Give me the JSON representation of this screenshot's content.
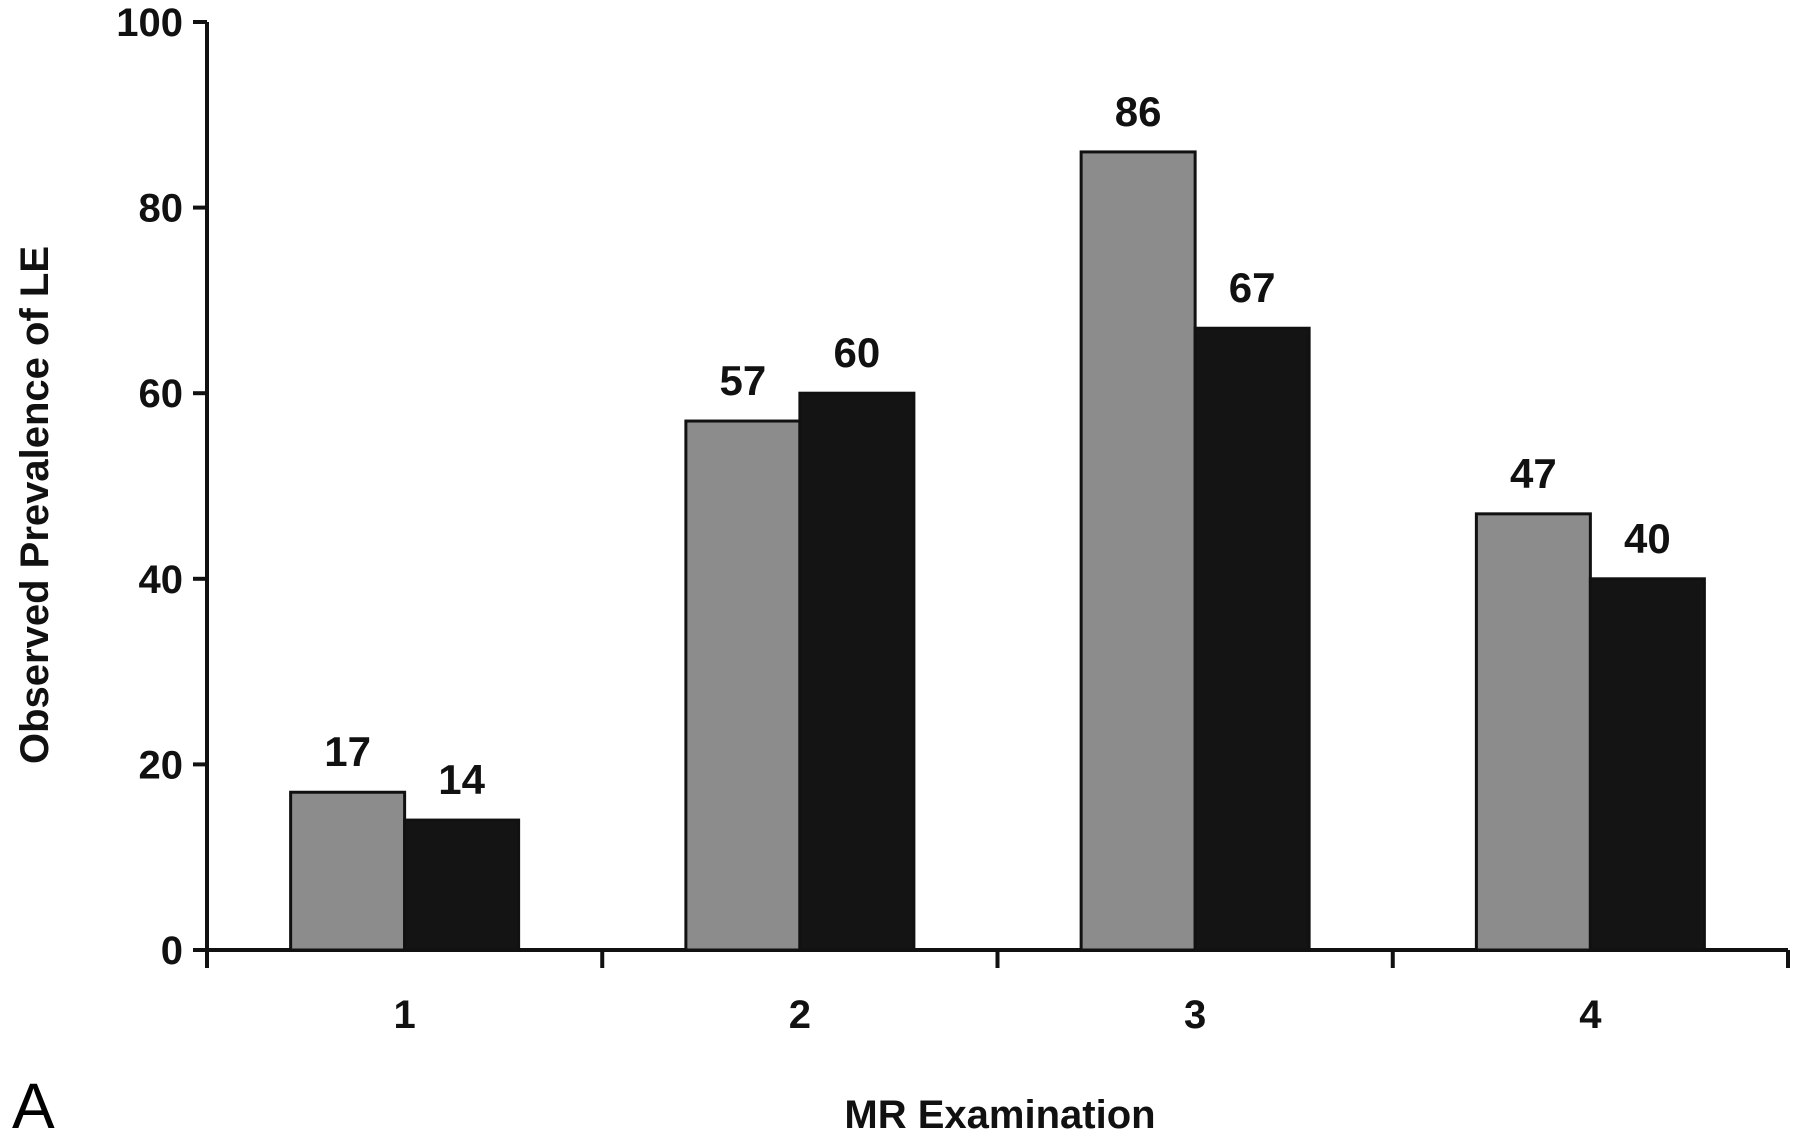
{
  "chart_data": {
    "type": "bar",
    "panel_label": "A",
    "xlabel": "MR Examination",
    "ylabel": "Observed Prevalence of LE",
    "ylim": [
      0,
      100
    ],
    "yticks": [
      0,
      20,
      40,
      60,
      80,
      100
    ],
    "grid": false,
    "legend": "none",
    "categories": [
      "1",
      "2",
      "3",
      "4"
    ],
    "series": [
      {
        "color": "#8c8c8c",
        "values": [
          17,
          57,
          86,
          47
        ],
        "labels": [
          "17",
          "57",
          "86",
          "47"
        ]
      },
      {
        "color": "#141414",
        "values": [
          14,
          60,
          67,
          40
        ],
        "labels": [
          "14",
          "60",
          "67",
          "40"
        ]
      }
    ]
  }
}
